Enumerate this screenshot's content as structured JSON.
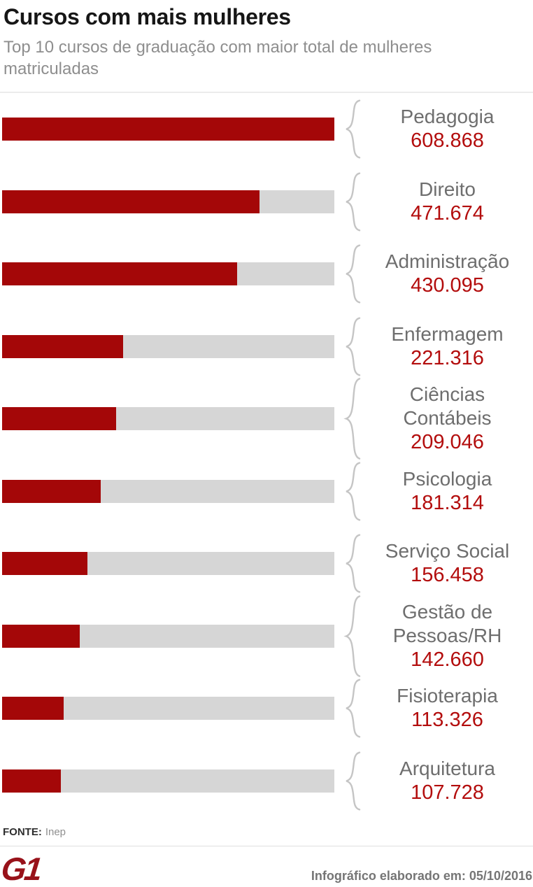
{
  "header": {
    "title": "Cursos com mais mulheres",
    "subtitle": "Top 10 cursos de graduação com maior total de mulheres matriculadas"
  },
  "chart_data": {
    "type": "bar",
    "orientation": "horizontal",
    "title": "Cursos com mais mulheres",
    "subtitle": "Top 10 cursos de graduação com maior total de mulheres matriculadas",
    "categories": [
      "Pedagogia",
      "Direito",
      "Administração",
      "Enfermagem",
      "Ciências Contábeis",
      "Psicologia",
      "Serviço Social",
      "Gestão de Pessoas/RH",
      "Fisioterapia",
      "Arquitetura"
    ],
    "category_display": [
      "Pedagogia",
      "Direito",
      "Administração",
      "Enfermagem",
      "Ciências\nContábeis",
      "Psicologia",
      "Serviço Social",
      "Gestão de\nPessoas/RH",
      "Fisioterapia",
      "Arquitetura"
    ],
    "values": [
      608868,
      471674,
      430095,
      221316,
      209046,
      181314,
      156458,
      142660,
      113326,
      107728
    ],
    "value_labels": [
      "608.868",
      "471.674",
      "430.095",
      "221.316",
      "209.046",
      "181.314",
      "156.458",
      "142.660",
      "113.326",
      "107.728"
    ],
    "max_value": 608868,
    "bar_color": "#a40708",
    "track_color": "#d6d6d6",
    "label_color": "#6e6e6e",
    "value_color": "#b30d0d",
    "brace_color": "#c5c5c5",
    "xlim": [
      0,
      608868
    ],
    "grid": false,
    "legend": "none"
  },
  "footer": {
    "source_label": "FONTE:",
    "source_value": "Inep",
    "logo_text": "G1",
    "credit": "Infográfico elaborado em: 05/10/2016"
  }
}
